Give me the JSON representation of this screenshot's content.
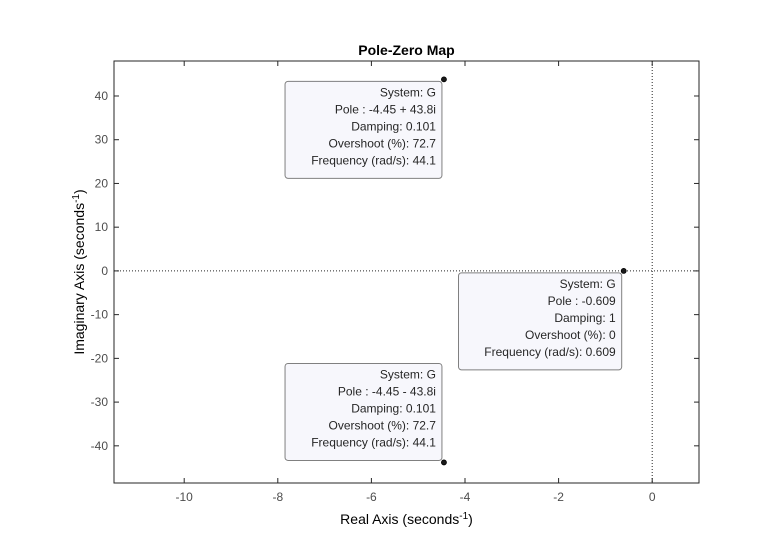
{
  "chart_data": {
    "type": "scatter",
    "title": "Pole-Zero Map",
    "xlabel": "Real Axis (seconds",
    "xlabel_exp": "-1",
    "xlabel_end": ")",
    "ylabel": "Imaginary Axis (seconds",
    "ylabel_exp": "-1",
    "ylabel_end": ")",
    "xlim": [
      -11.5,
      1.0
    ],
    "ylim": [
      -48.5,
      48.0
    ],
    "xticks": [
      -10,
      -8,
      -6,
      -4,
      -2,
      0
    ],
    "yticks": [
      -40,
      -30,
      -20,
      -10,
      0,
      10,
      20,
      30,
      40
    ],
    "grid": false,
    "reference_lines": {
      "x": 0,
      "y": 0,
      "style": "dotted"
    },
    "colors": {
      "axes": "#262626",
      "tick_labels": "#4d4d4d",
      "marker": "#1a1a1a",
      "tip_bg": "#f7f7fc",
      "tip_border": "#808080"
    },
    "series": [
      {
        "marker": "filled-circle",
        "points": [
          {
            "x": -4.45,
            "y": 43.8
          },
          {
            "x": -4.45,
            "y": -43.8
          },
          {
            "x": -0.609,
            "y": 0
          }
        ]
      }
    ],
    "annotations": [
      {
        "point": 0,
        "lines": [
          "System: G",
          "Pole : -4.45 + 43.8i",
          "Damping: 0.101",
          "Overshoot (%): 72.7",
          "Frequency (rad/s): 44.1"
        ]
      },
      {
        "point": 2,
        "lines": [
          "System: G",
          "Pole : -0.609",
          "Damping: 1",
          "Overshoot (%): 0",
          "Frequency (rad/s): 0.609"
        ]
      },
      {
        "point": 1,
        "lines": [
          "System: G",
          "Pole : -4.45 - 43.8i",
          "Damping: 0.101",
          "Overshoot (%): 72.7",
          "Frequency (rad/s): 44.1"
        ]
      }
    ]
  }
}
